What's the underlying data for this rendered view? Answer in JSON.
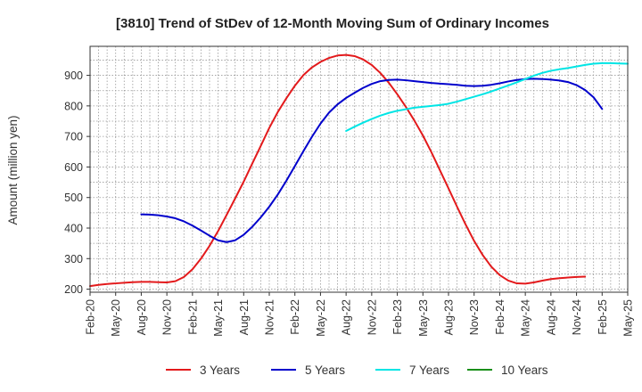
{
  "chart_data": {
    "type": "line",
    "title": "[3810]  Trend of StDev of 12-Month Moving Sum of Ordinary Incomes",
    "xlabel": "",
    "ylabel": "Amount (million yen)",
    "ylim": [
      190,
      995
    ],
    "y_ticks": [
      200,
      300,
      400,
      500,
      600,
      700,
      800,
      900
    ],
    "x_tick_labels": [
      "Feb-20",
      "May-20",
      "Aug-20",
      "Nov-20",
      "Feb-21",
      "May-21",
      "Aug-21",
      "Nov-21",
      "Feb-22",
      "May-22",
      "Aug-22",
      "Nov-22",
      "Feb-23",
      "May-23",
      "Aug-23",
      "Nov-23",
      "Feb-24",
      "May-24",
      "Aug-24",
      "Nov-24",
      "Feb-25",
      "May-25"
    ],
    "x_index_range": [
      0,
      63
    ],
    "grid": true,
    "legend_position": "bottom",
    "series": [
      {
        "name": "3 Years",
        "color": "#e31a1c",
        "start_index": 0,
        "values": [
          210,
          214,
          217,
          219,
          221,
          223,
          224,
          224,
          223,
          222,
          226,
          240,
          265,
          300,
          342,
          390,
          443,
          497,
          552,
          611,
          669,
          728,
          780,
          825,
          866,
          901,
          926,
          944,
          957,
          965,
          967,
          963,
          952,
          934,
          908,
          876,
          838,
          797,
          752,
          703,
          648,
          589,
          530,
          470,
          412,
          358,
          312,
          274,
          246,
          228,
          219,
          218,
          222,
          228,
          233,
          236,
          238,
          240,
          241
        ]
      },
      {
        "name": "5 Years",
        "color": "#0000cc",
        "start_index": 6,
        "values": [
          445,
          444,
          442,
          438,
          432,
          422,
          408,
          392,
          375,
          360,
          354,
          360,
          378,
          404,
          435,
          470,
          510,
          555,
          603,
          652,
          699,
          742,
          778,
          805,
          826,
          843,
          859,
          872,
          881,
          885,
          886,
          884,
          881,
          878,
          875,
          873,
          871,
          869,
          866,
          865,
          866,
          869,
          874,
          880,
          885,
          888,
          889,
          888,
          886,
          883,
          878,
          868,
          852,
          828,
          790
        ]
      },
      {
        "name": "7 Years",
        "color": "#00e5e5",
        "start_index": 30,
        "values": [
          718,
          732,
          745,
          757,
          768,
          777,
          784,
          789,
          794,
          797,
          800,
          803,
          807,
          814,
          822,
          830,
          838,
          847,
          857,
          867,
          877,
          888,
          899,
          908,
          915,
          920,
          924,
          929,
          934,
          938,
          940,
          940,
          939,
          938
        ]
      },
      {
        "name": "10 Years",
        "color": "#1a8f1a",
        "start_index": 0,
        "values": []
      }
    ]
  }
}
